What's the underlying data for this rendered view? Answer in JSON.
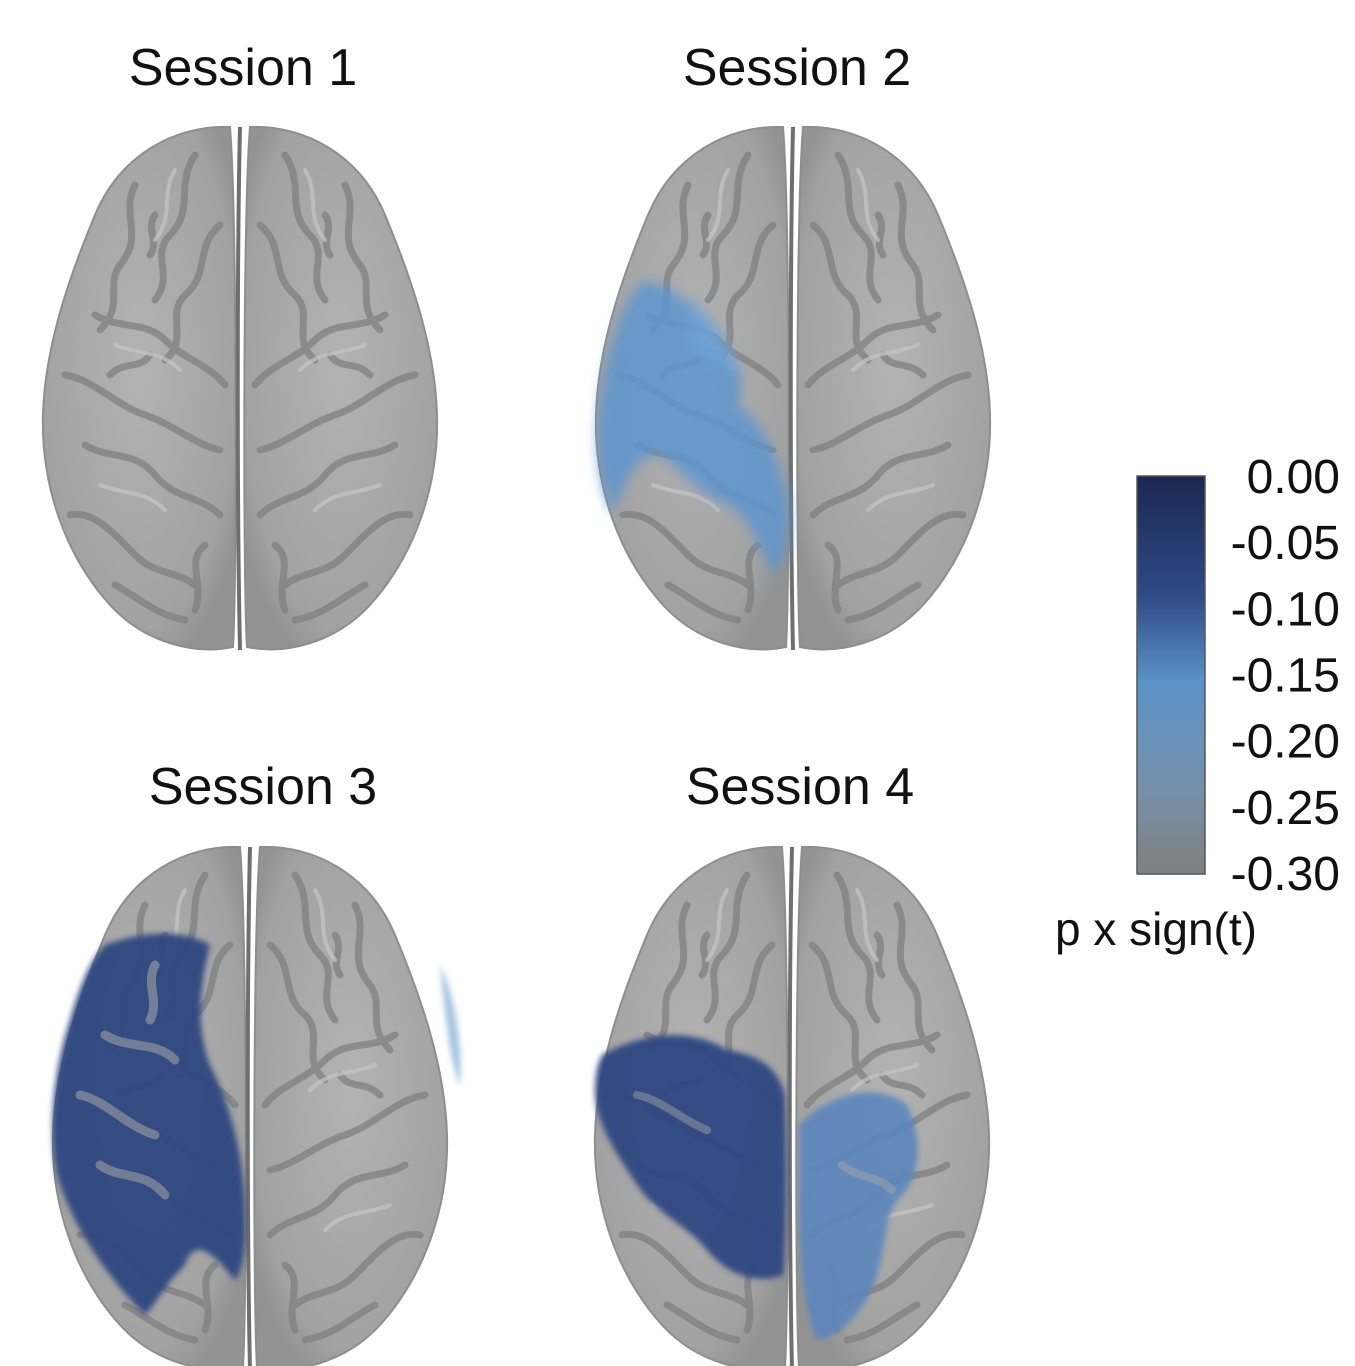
{
  "panels": [
    {
      "title": "Session 1",
      "blobs": []
    },
    {
      "title": "Session 2",
      "blobs": [
        {
          "hemisphere": "left",
          "region": "frontal-lateral",
          "value": -0.15
        },
        {
          "hemisphere": "left",
          "region": "central",
          "value": -0.15
        },
        {
          "hemisphere": "left",
          "region": "parietal-medial",
          "value": -0.17
        }
      ]
    },
    {
      "title": "Session 3",
      "blobs": [
        {
          "hemisphere": "left",
          "region": "frontal-parietal-lateral",
          "value": -0.02
        },
        {
          "hemisphere": "right",
          "region": "lateral-edge",
          "value": -0.18
        }
      ]
    },
    {
      "title": "Session 4",
      "blobs": [
        {
          "hemisphere": "left",
          "region": "central-parietal",
          "value": -0.02
        },
        {
          "hemisphere": "right",
          "region": "central-parietal",
          "value": -0.13
        }
      ]
    }
  ],
  "colorbar": {
    "title": "p x sign(t)",
    "ticks": [
      "0.00",
      "-0.05",
      "-0.10",
      "-0.15",
      "-0.20",
      "-0.25",
      "-0.30"
    ],
    "range": [
      -0.3,
      0.0
    ],
    "colors": {
      "top": "#1b2850",
      "upper": "#2f4a86",
      "middle": "#5b93c8",
      "lower": "#7690ab",
      "bottom": "#808080"
    }
  },
  "colors": {
    "brain": "#a7a7a7",
    "sulcus": "#7d7d7d",
    "gyrus_highlight": "#c4c4c4",
    "outline": "#8d8d8d"
  }
}
